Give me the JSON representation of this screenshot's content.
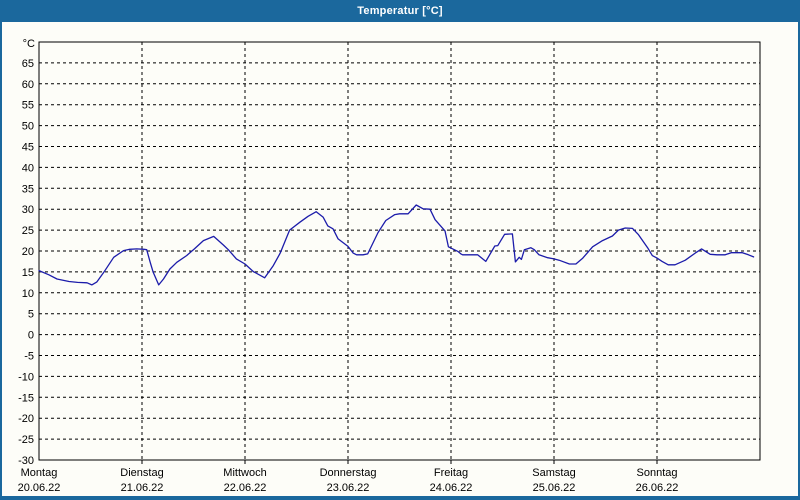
{
  "window": {
    "title": "Temperatur [°C]",
    "colors": {
      "title_bar": "#1b689d",
      "border": "#1b689d",
      "content_bg": "#fdfdf8",
      "plot_border": "#000000",
      "grid": "#000000",
      "series": "#1c1caa",
      "label": "#000000"
    }
  },
  "chart_data": {
    "type": "line",
    "title": "Temperatur [°C]",
    "ylabel": "°C",
    "xlabel": "",
    "ylim": [
      -30,
      70
    ],
    "yticks": {
      "start": -30,
      "end": 65,
      "step": 5
    },
    "grid": "dashed",
    "legend": "none",
    "x_range_hours": [
      0,
      168
    ],
    "x_days": [
      {
        "name": "Montag",
        "date": "20.06.22"
      },
      {
        "name": "Dienstag",
        "date": "21.06.22"
      },
      {
        "name": "Mittwoch",
        "date": "22.06.22"
      },
      {
        "name": "Donnerstag",
        "date": "23.06.22"
      },
      {
        "name": "Freitag",
        "date": "24.06.22"
      },
      {
        "name": "Samstag",
        "date": "25.06.22"
      },
      {
        "name": "Sonntag",
        "date": "26.06.22"
      }
    ],
    "series": [
      {
        "name": "Temperatur",
        "color": "#1c1caa",
        "points_hour_degC": [
          [
            0,
            15.3
          ],
          [
            2.3,
            14.3
          ],
          [
            4.2,
            13.3
          ],
          [
            7,
            12.7
          ],
          [
            9,
            12.5
          ],
          [
            11.2,
            12.4
          ],
          [
            12.3,
            11.9
          ],
          [
            13.5,
            12.6
          ],
          [
            15.1,
            14.9
          ],
          [
            17.4,
            18.5
          ],
          [
            19.7,
            20.1
          ],
          [
            21.1,
            20.4
          ],
          [
            22.8,
            20.5
          ],
          [
            24.5,
            20.4
          ],
          [
            25.1,
            20.3
          ],
          [
            25.9,
            17.3
          ],
          [
            26.6,
            14.9
          ],
          [
            27.9,
            11.9
          ],
          [
            29,
            13.3
          ],
          [
            30.5,
            15.7
          ],
          [
            32.1,
            17.3
          ],
          [
            34.4,
            18.9
          ],
          [
            36.2,
            20.5
          ],
          [
            38.3,
            22.5
          ],
          [
            40.7,
            23.5
          ],
          [
            43,
            21.4
          ],
          [
            44.1,
            20.3
          ],
          [
            46,
            18.1
          ],
          [
            48,
            16.9
          ],
          [
            49.9,
            15.1
          ],
          [
            52.6,
            13.6
          ],
          [
            54.6,
            16.5
          ],
          [
            56.2,
            19.5
          ],
          [
            58.4,
            25
          ],
          [
            60.8,
            26.9
          ],
          [
            62.7,
            28.3
          ],
          [
            64.6,
            29.4
          ],
          [
            66.2,
            28.1
          ],
          [
            67.3,
            26
          ],
          [
            68.5,
            25.3
          ],
          [
            69.7,
            22.9
          ],
          [
            72,
            21.1
          ],
          [
            73.2,
            19.5
          ],
          [
            74,
            19.1
          ],
          [
            75.5,
            19.1
          ],
          [
            76.6,
            19.3
          ],
          [
            79,
            24.4
          ],
          [
            80.8,
            27.3
          ],
          [
            82.9,
            28.7
          ],
          [
            84,
            28.9
          ],
          [
            86,
            28.9
          ],
          [
            87.9,
            31
          ],
          [
            89.5,
            30.1
          ],
          [
            91.1,
            30
          ],
          [
            92.3,
            27.5
          ],
          [
            94.6,
            24.8
          ],
          [
            95.4,
            21
          ],
          [
            97.6,
            19.9
          ],
          [
            98.3,
            19.3
          ],
          [
            98.7,
            19.1
          ],
          [
            102.2,
            19.1
          ],
          [
            104.1,
            17.5
          ],
          [
            106.2,
            21.2
          ],
          [
            106.9,
            21.3
          ],
          [
            108.5,
            24
          ],
          [
            110.3,
            24.1
          ],
          [
            111,
            17.4
          ],
          [
            111.9,
            18.5
          ],
          [
            112.4,
            18
          ],
          [
            113.1,
            20.3
          ],
          [
            114.6,
            20.8
          ],
          [
            115.4,
            20.3
          ],
          [
            116.5,
            19.1
          ],
          [
            118.5,
            18.4
          ],
          [
            120,
            18.1
          ],
          [
            121.2,
            17.8
          ],
          [
            123.6,
            16.9
          ],
          [
            125.1,
            16.9
          ],
          [
            126.7,
            18.3
          ],
          [
            129,
            21
          ],
          [
            131.3,
            22.5
          ],
          [
            133.6,
            23.6
          ],
          [
            135,
            25
          ],
          [
            136.6,
            25.5
          ],
          [
            138.3,
            25.4
          ],
          [
            139.7,
            23.9
          ],
          [
            141.8,
            20.8
          ],
          [
            142.9,
            18.9
          ],
          [
            144,
            18.3
          ],
          [
            145.2,
            17.5
          ],
          [
            146.6,
            16.7
          ],
          [
            148.2,
            16.7
          ],
          [
            150.6,
            17.8
          ],
          [
            152.9,
            19.5
          ],
          [
            154.4,
            20.5
          ],
          [
            156.4,
            19.2
          ],
          [
            158,
            19.1
          ],
          [
            159.9,
            19.1
          ],
          [
            161.3,
            19.6
          ],
          [
            163.9,
            19.6
          ],
          [
            165.3,
            19.1
          ],
          [
            166.5,
            18.6
          ]
        ]
      }
    ]
  }
}
